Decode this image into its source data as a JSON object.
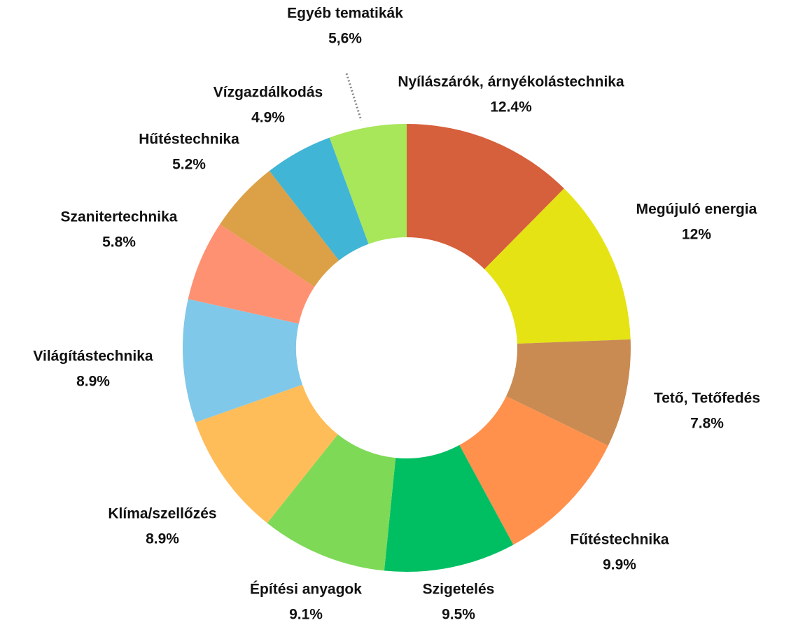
{
  "chart_data": {
    "type": "donut",
    "categories": [
      "Nyílászárók, árnyékolástechnika",
      "Megújuló energia",
      "Tető, Tetőfedés",
      "Fűtéstechnika",
      "Szigetelés",
      "Építési anyagok",
      "Klíma/szellőzés",
      "Világítástechnika",
      "Szanitertechnika",
      "Hűtéstechnika",
      "Vízgazdálkodás",
      "Egyéb tematikák"
    ],
    "values": [
      12.4,
      12,
      7.8,
      9.9,
      9.5,
      9.1,
      8.9,
      8.9,
      5.8,
      5.2,
      4.9,
      5.6
    ],
    "value_labels": [
      "12.4%",
      "12%",
      "7.8%",
      "9.9%",
      "9.5%",
      "9.1%",
      "8.9%",
      "8.9%",
      "5.8%",
      "5.2%",
      "4.9%",
      "5,6%"
    ],
    "colors": [
      "#d65f3c",
      "#e5e314",
      "#c98b52",
      "#ff914d",
      "#00bf63",
      "#7ed957",
      "#ffbd59",
      "#7fc8e9",
      "#ff9173",
      "#dca047",
      "#40b5d5",
      "#a8e65a"
    ]
  }
}
